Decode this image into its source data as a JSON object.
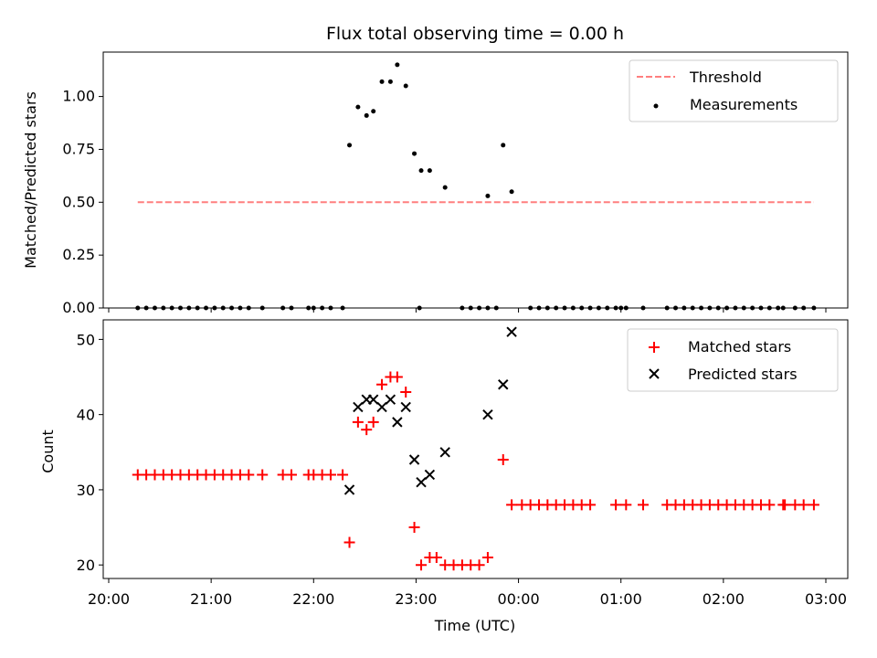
{
  "chart_data": [
    {
      "type": "scatter",
      "title": "Flux total observing time = 0.00 h",
      "xlabel": "",
      "ylabel": "Matched/Predicted stars",
      "xlim": [
        "20:00",
        "03:00"
      ],
      "ylim": [
        0,
        1.21
      ],
      "yticks": [
        "0.00",
        "0.25",
        "0.50",
        "0.75",
        "1.00"
      ],
      "grid": false,
      "legend_position": "top-right",
      "threshold": {
        "name": "Threshold",
        "value": 0.5,
        "x_start": "20:17",
        "x_end": "02:53",
        "color": "#ff7f7f"
      },
      "series": [
        {
          "name": "Measurements",
          "color": "#000000",
          "points": [
            [
              "20:17",
              0
            ],
            [
              "20:22",
              0
            ],
            [
              "20:27",
              0
            ],
            [
              "20:32",
              0
            ],
            [
              "20:37",
              0
            ],
            [
              "20:42",
              0
            ],
            [
              "20:47",
              0
            ],
            [
              "20:52",
              0
            ],
            [
              "20:57",
              0
            ],
            [
              "21:02",
              0
            ],
            [
              "21:07",
              0
            ],
            [
              "21:12",
              0
            ],
            [
              "21:17",
              0
            ],
            [
              "21:22",
              0
            ],
            [
              "21:30",
              0
            ],
            [
              "21:42",
              0
            ],
            [
              "21:47",
              0
            ],
            [
              "21:57",
              0
            ],
            [
              "22:00",
              0
            ],
            [
              "22:05",
              0
            ],
            [
              "22:10",
              0
            ],
            [
              "22:17",
              0
            ],
            [
              "22:21",
              0.77
            ],
            [
              "22:26",
              0.95
            ],
            [
              "22:31",
              0.91
            ],
            [
              "22:35",
              0.93
            ],
            [
              "22:40",
              1.07
            ],
            [
              "22:45",
              1.07
            ],
            [
              "22:49",
              1.15
            ],
            [
              "22:54",
              1.05
            ],
            [
              "22:59",
              0.73
            ],
            [
              "23:03",
              0.65
            ],
            [
              "23:08",
              0.65
            ],
            [
              "23:02",
              0
            ],
            [
              "23:17",
              0.57
            ],
            [
              "23:27",
              0
            ],
            [
              "23:32",
              0
            ],
            [
              "23:37",
              0
            ],
            [
              "23:42",
              0
            ],
            [
              "23:47",
              0
            ],
            [
              "23:42",
              0.53
            ],
            [
              "23:51",
              0.77
            ],
            [
              "23:56",
              0.55
            ],
            [
              "00:07",
              0
            ],
            [
              "00:12",
              0
            ],
            [
              "00:17",
              0
            ],
            [
              "00:22",
              0
            ],
            [
              "00:27",
              0
            ],
            [
              "00:32",
              0
            ],
            [
              "00:37",
              0
            ],
            [
              "00:42",
              0
            ],
            [
              "00:47",
              0
            ],
            [
              "00:52",
              0
            ],
            [
              "00:57",
              0
            ],
            [
              "01:00",
              0
            ],
            [
              "01:03",
              0
            ],
            [
              "01:13",
              0
            ],
            [
              "01:27",
              0
            ],
            [
              "01:32",
              0
            ],
            [
              "01:37",
              0
            ],
            [
              "01:42",
              0
            ],
            [
              "01:47",
              0
            ],
            [
              "01:52",
              0
            ],
            [
              "01:57",
              0
            ],
            [
              "02:02",
              0
            ],
            [
              "02:07",
              0
            ],
            [
              "02:12",
              0
            ],
            [
              "02:17",
              0
            ],
            [
              "02:22",
              0
            ],
            [
              "02:27",
              0
            ],
            [
              "02:32",
              0
            ],
            [
              "02:35",
              0
            ],
            [
              "02:42",
              0
            ],
            [
              "02:47",
              0
            ],
            [
              "02:53",
              0
            ]
          ]
        }
      ]
    },
    {
      "type": "scatter",
      "title": "",
      "xlabel": "Time (UTC)",
      "ylabel": "Count",
      "xlim": [
        "20:00",
        "03:00"
      ],
      "ylim": [
        18.2,
        52.6
      ],
      "xticks": [
        "20:00",
        "21:00",
        "22:00",
        "23:00",
        "00:00",
        "01:00",
        "02:00",
        "03:00"
      ],
      "yticks": [
        "20",
        "30",
        "40",
        "50"
      ],
      "grid": false,
      "legend_position": "top-right",
      "series": [
        {
          "name": "Matched stars",
          "marker": "plus",
          "color": "#ff0000",
          "points": [
            [
              "20:17",
              32
            ],
            [
              "20:22",
              32
            ],
            [
              "20:27",
              32
            ],
            [
              "20:32",
              32
            ],
            [
              "20:37",
              32
            ],
            [
              "20:42",
              32
            ],
            [
              "20:47",
              32
            ],
            [
              "20:52",
              32
            ],
            [
              "20:57",
              32
            ],
            [
              "21:02",
              32
            ],
            [
              "21:07",
              32
            ],
            [
              "21:12",
              32
            ],
            [
              "21:17",
              32
            ],
            [
              "21:22",
              32
            ],
            [
              "21:30",
              32
            ],
            [
              "21:42",
              32
            ],
            [
              "21:47",
              32
            ],
            [
              "21:57",
              32
            ],
            [
              "22:00",
              32
            ],
            [
              "22:05",
              32
            ],
            [
              "22:10",
              32
            ],
            [
              "22:17",
              32
            ],
            [
              "22:21",
              23
            ],
            [
              "22:26",
              39
            ],
            [
              "22:31",
              38
            ],
            [
              "22:35",
              39
            ],
            [
              "22:40",
              44
            ],
            [
              "22:45",
              45
            ],
            [
              "22:49",
              45
            ],
            [
              "22:54",
              43
            ],
            [
              "22:59",
              25
            ],
            [
              "23:03",
              20
            ],
            [
              "23:08",
              21
            ],
            [
              "23:12",
              21
            ],
            [
              "23:17",
              20
            ],
            [
              "23:22",
              20
            ],
            [
              "23:27",
              20
            ],
            [
              "23:32",
              20
            ],
            [
              "23:37",
              20
            ],
            [
              "23:42",
              21
            ],
            [
              "23:51",
              34
            ],
            [
              "23:56",
              28
            ],
            [
              "00:02",
              28
            ],
            [
              "00:07",
              28
            ],
            [
              "00:12",
              28
            ],
            [
              "00:17",
              28
            ],
            [
              "00:22",
              28
            ],
            [
              "00:27",
              28
            ],
            [
              "00:32",
              28
            ],
            [
              "00:37",
              28
            ],
            [
              "00:42",
              28
            ],
            [
              "00:57",
              28
            ],
            [
              "01:03",
              28
            ],
            [
              "01:13",
              28
            ],
            [
              "01:27",
              28
            ],
            [
              "01:32",
              28
            ],
            [
              "01:37",
              28
            ],
            [
              "01:42",
              28
            ],
            [
              "01:47",
              28
            ],
            [
              "01:52",
              28
            ],
            [
              "01:57",
              28
            ],
            [
              "02:02",
              28
            ],
            [
              "02:07",
              28
            ],
            [
              "02:12",
              28
            ],
            [
              "02:17",
              28
            ],
            [
              "02:22",
              28
            ],
            [
              "02:27",
              28
            ],
            [
              "02:35",
              28
            ],
            [
              "02:36",
              28
            ],
            [
              "02:42",
              28
            ],
            [
              "02:47",
              28
            ],
            [
              "02:53",
              28
            ]
          ]
        },
        {
          "name": "Predicted stars",
          "marker": "x",
          "color": "#000000",
          "points": [
            [
              "22:21",
              30
            ],
            [
              "22:26",
              41
            ],
            [
              "22:31",
              42
            ],
            [
              "22:35",
              42
            ],
            [
              "22:40",
              41
            ],
            [
              "22:45",
              42
            ],
            [
              "22:49",
              39
            ],
            [
              "22:54",
              41
            ],
            [
              "22:59",
              34
            ],
            [
              "23:03",
              31
            ],
            [
              "23:08",
              32
            ],
            [
              "23:17",
              35
            ],
            [
              "23:42",
              40
            ],
            [
              "23:51",
              44
            ],
            [
              "23:56",
              51
            ]
          ]
        }
      ]
    }
  ]
}
